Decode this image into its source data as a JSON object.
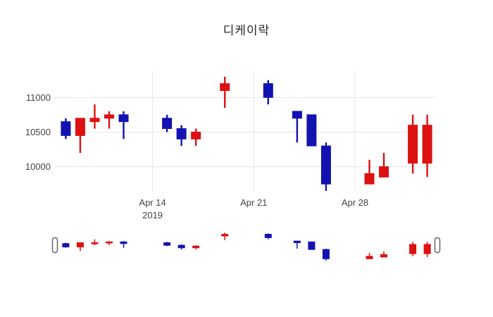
{
  "chart_data": {
    "type": "candlestick",
    "title": "디케이락",
    "increasing_color": "#dd1111",
    "decreasing_color": "#1212b2",
    "grid_color": "#e8e8e8",
    "tick_label_color": "#444444",
    "background_color": "#ffffff",
    "legend": "none",
    "xlabel": "",
    "ylabel": "",
    "y_ticks": [
      10000,
      10500,
      11000
    ],
    "ylim": [
      9640,
      11390
    ],
    "xlim_days": [
      -0.75,
      25.7
    ],
    "x_ticks": [
      {
        "label": "Apr 14",
        "sublabel": "2019",
        "day": 6
      },
      {
        "label": "Apr 21",
        "sublabel": "",
        "day": 13
      },
      {
        "label": "Apr 28",
        "sublabel": "",
        "day": 20
      }
    ],
    "rangeslider": {
      "visible": true,
      "full_range_selected": true
    },
    "series": [
      {
        "date": "2019-04-08",
        "day": 0,
        "open": 10650,
        "high": 10700,
        "low": 10400,
        "close": 10450
      },
      {
        "date": "2019-04-09",
        "day": 1,
        "open": 10450,
        "high": 10700,
        "low": 10200,
        "close": 10700
      },
      {
        "date": "2019-04-10",
        "day": 2,
        "open": 10650,
        "high": 10900,
        "low": 10550,
        "close": 10700
      },
      {
        "date": "2019-04-11",
        "day": 3,
        "open": 10700,
        "high": 10800,
        "low": 10550,
        "close": 10750
      },
      {
        "date": "2019-04-12",
        "day": 4,
        "open": 10750,
        "high": 10800,
        "low": 10400,
        "close": 10650
      },
      {
        "date": "2019-04-15",
        "day": 7,
        "open": 10700,
        "high": 10750,
        "low": 10500,
        "close": 10550
      },
      {
        "date": "2019-04-16",
        "day": 8,
        "open": 10550,
        "high": 10600,
        "low": 10300,
        "close": 10400
      },
      {
        "date": "2019-04-17",
        "day": 9,
        "open": 10400,
        "high": 10550,
        "low": 10300,
        "close": 10500
      },
      {
        "date": "2019-04-19",
        "day": 11,
        "open": 11100,
        "high": 11300,
        "low": 10850,
        "close": 11200
      },
      {
        "date": "2019-04-22",
        "day": 14,
        "open": 11200,
        "high": 11250,
        "low": 10900,
        "close": 11000
      },
      {
        "date": "2019-04-24",
        "day": 16,
        "open": 10800,
        "high": 10800,
        "low": 10350,
        "close": 10700
      },
      {
        "date": "2019-04-25",
        "day": 17,
        "open": 10750,
        "high": 10750,
        "low": 10300,
        "close": 10300
      },
      {
        "date": "2019-04-26",
        "day": 18,
        "open": 10300,
        "high": 10350,
        "low": 9650,
        "close": 9750
      },
      {
        "date": "2019-04-29",
        "day": 21,
        "open": 9750,
        "high": 10100,
        "low": 9750,
        "close": 9900
      },
      {
        "date": "2019-04-30",
        "day": 22,
        "open": 9850,
        "high": 10200,
        "low": 9850,
        "close": 10000
      },
      {
        "date": "2019-05-02",
        "day": 24,
        "open": 10050,
        "high": 10750,
        "low": 9900,
        "close": 10600
      },
      {
        "date": "2019-05-03",
        "day": 25,
        "open": 10050,
        "high": 10750,
        "low": 9850,
        "close": 10600
      }
    ]
  }
}
